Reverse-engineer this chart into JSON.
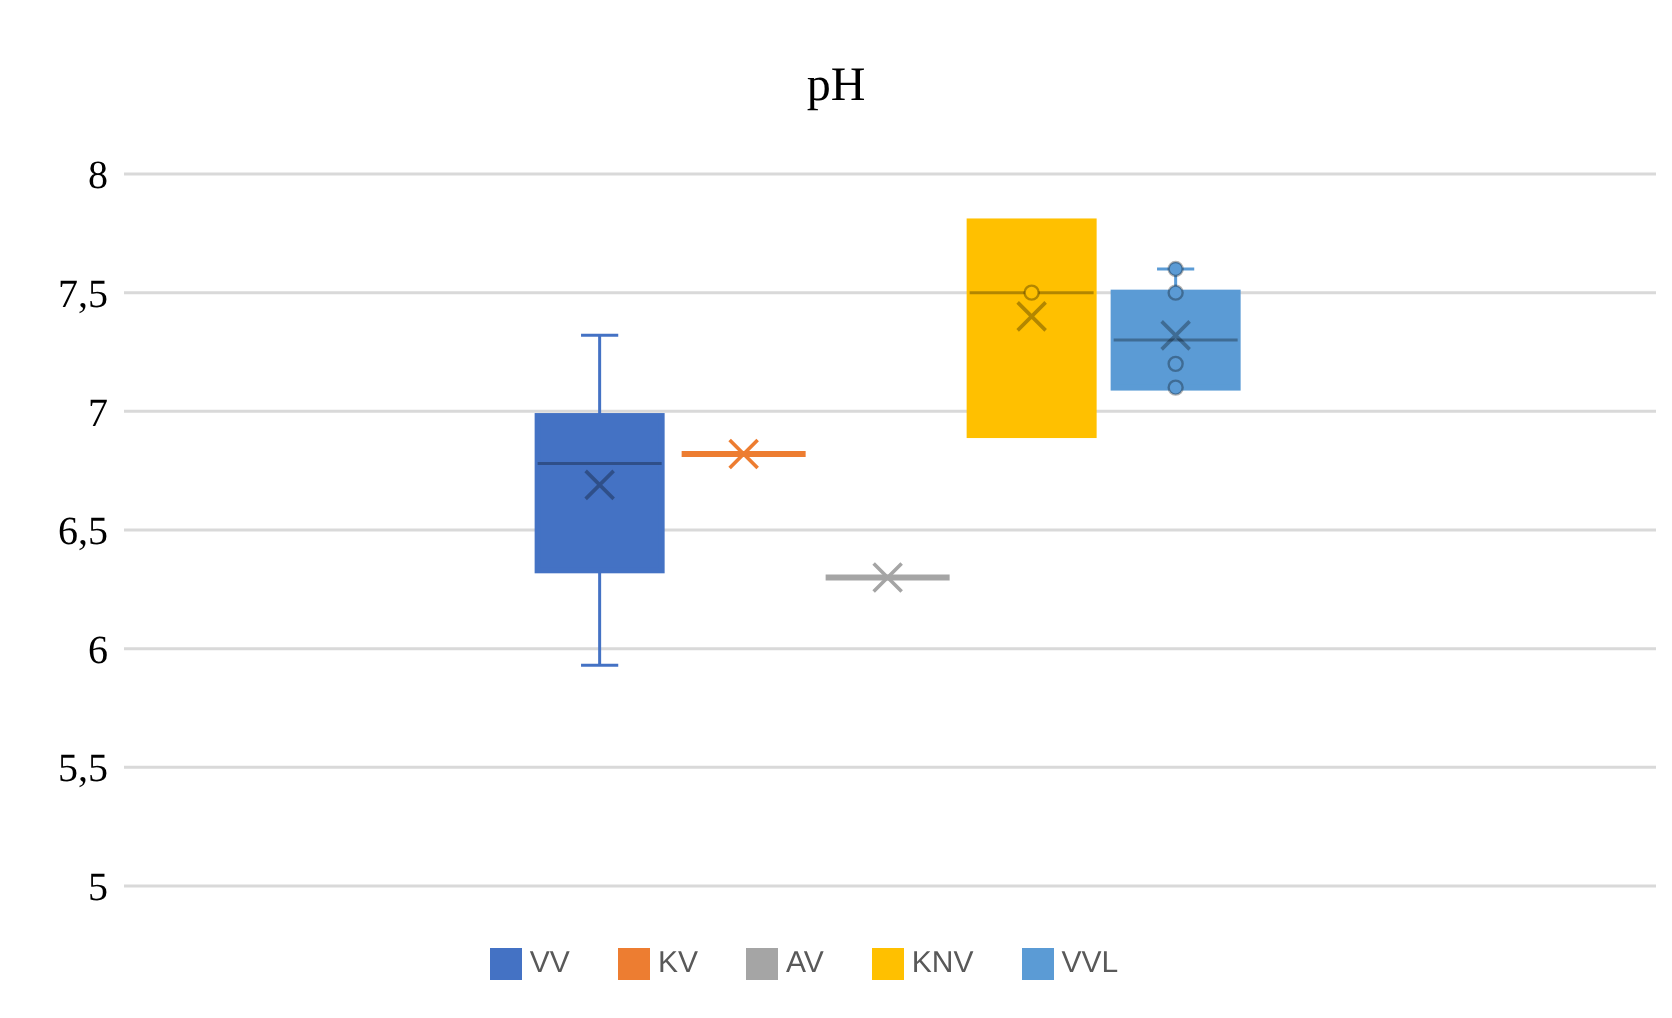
{
  "chart_data": {
    "type": "box",
    "title": "pH",
    "categories": [
      null
    ],
    "series": [
      {
        "name": "VV",
        "color": "#4472c4",
        "boxes": [
          {
            "low": 5.93,
            "q1": 6.33,
            "median": 6.78,
            "q3": 6.98,
            "high": 7.32,
            "mean": 6.69
          }
        ]
      },
      {
        "name": "KV",
        "color": "#ed7d31",
        "boxes": [
          {
            "low": 6.82,
            "q1": 6.82,
            "median": 6.82,
            "q3": 6.82,
            "high": 6.82,
            "mean": 6.82
          }
        ]
      },
      {
        "name": "AV",
        "color": "#a5a5a5",
        "boxes": [
          {
            "low": 6.3,
            "q1": 6.3,
            "median": 6.3,
            "q3": 6.3,
            "high": 6.3,
            "mean": 6.3
          }
        ]
      },
      {
        "name": "KNV",
        "color": "#ffc000",
        "boxes": [
          {
            "low": 6.9,
            "q1": 6.9,
            "median": 7.5,
            "q3": 7.8,
            "high": 7.8,
            "mean": 7.4,
            "outliers": [
              7.5
            ]
          }
        ]
      },
      {
        "name": "VVL",
        "color": "#5b9bd5",
        "boxes": [
          {
            "low": 7.1,
            "q1": 7.1,
            "median": 7.3,
            "q3": 7.5,
            "high": 7.6,
            "mean": 7.32,
            "outliers": [
              7.6,
              7.5,
              7.2,
              7.1
            ]
          }
        ]
      }
    ],
    "ylim": [
      5,
      8
    ],
    "yticks": [
      5,
      {
        "value": 5.5,
        "label": "5,5"
      },
      6,
      {
        "value": 6.5,
        "label": "6,5"
      },
      7,
      {
        "value": 7.5,
        "label": "7,5"
      },
      8
    ],
    "grid": "y",
    "legend": "bottom"
  }
}
